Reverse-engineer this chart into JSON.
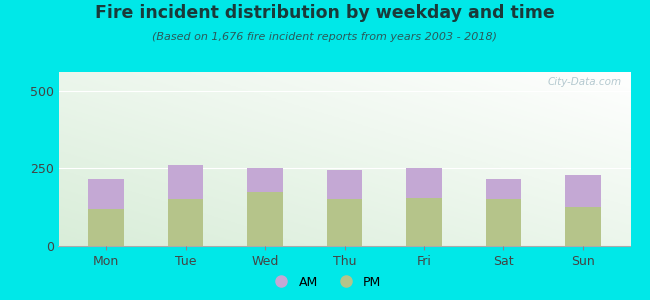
{
  "title": "Fire incident distribution by weekday and time",
  "subtitle": "(Based on 1,676 fire incident reports from years 2003 - 2018)",
  "categories": [
    "Mon",
    "Tue",
    "Wed",
    "Thu",
    "Fri",
    "Sat",
    "Sun"
  ],
  "pm_values": [
    120,
    150,
    175,
    150,
    155,
    150,
    125
  ],
  "am_values": [
    95,
    110,
    75,
    95,
    95,
    65,
    105
  ],
  "am_color": "#c4a8d4",
  "pm_color": "#b5c48a",
  "background_color": "#00e8e8",
  "ylim": [
    0,
    560
  ],
  "yticks": [
    0,
    250,
    500
  ],
  "title_color": "#1a3a3a",
  "subtitle_color": "#2a5a5a",
  "tick_color": "#444444",
  "figsize": [
    6.5,
    3.0
  ],
  "dpi": 100
}
